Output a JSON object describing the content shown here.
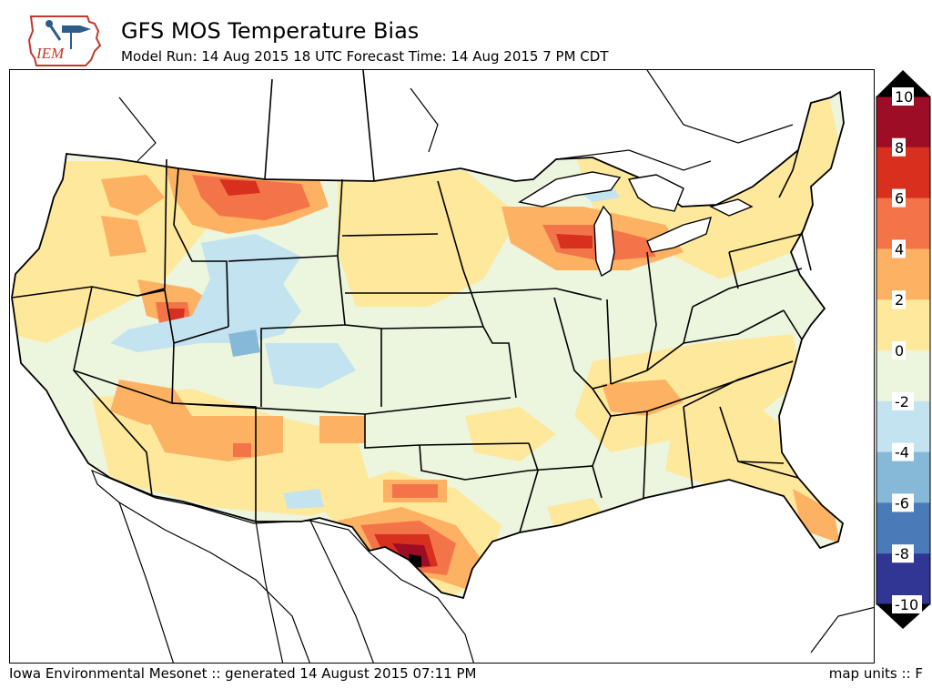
{
  "header": {
    "logo_text": "IEM",
    "title": "GFS MOS Temperature Bias",
    "subtitle": "Model Run: 14 Aug 2015 18 UTC Forecast Time: 14 Aug 2015 7 PM CDT"
  },
  "footer": {
    "left": "Iowa Environmental Mesonet :: generated 14 August 2015 07:11 PM",
    "right": "map units :: F"
  },
  "colorbar": {
    "ticks": [
      "10",
      "8",
      "6",
      "4",
      "2",
      "0",
      "-2",
      "-4",
      "-6",
      "-8",
      "-10"
    ],
    "colors": [
      "#67001f",
      "#b2182b",
      "#d6604d",
      "#f4a582",
      "#fddbc7",
      "#fee090",
      "#e0f3db",
      "#d1e5f0",
      "#92c5de",
      "#4393c3",
      "#2166ac",
      "#21317a"
    ],
    "bins": [
      {
        "lo": 8,
        "hi": 10,
        "color": "#9e0d26"
      },
      {
        "lo": 6,
        "hi": 8,
        "color": "#d7301f"
      },
      {
        "lo": 4,
        "hi": 6,
        "color": "#f4744a"
      },
      {
        "lo": 2,
        "hi": 4,
        "color": "#fdb163"
      },
      {
        "lo": 0,
        "hi": 2,
        "color": "#fee89c"
      },
      {
        "lo": -2,
        "hi": 0,
        "color": "#ecf5de"
      },
      {
        "lo": -4,
        "hi": -2,
        "color": "#c2e3ef"
      },
      {
        "lo": -6,
        "hi": -4,
        "color": "#86b9d8"
      },
      {
        "lo": -8,
        "hi": -6,
        "color": "#4a7bb8"
      },
      {
        "lo": -10,
        "hi": -8,
        "color": "#313694"
      }
    ],
    "over_color": "#000000",
    "under_color": "#000000"
  }
}
